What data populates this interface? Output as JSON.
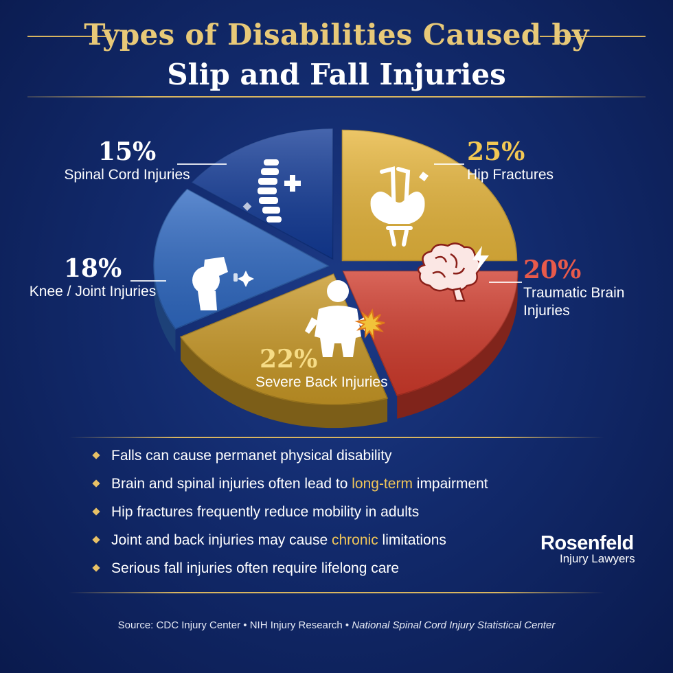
{
  "title": {
    "line1": "Types of Disabilities Caused by",
    "line2": "Slip and Fall Injuries"
  },
  "chart_data": {
    "type": "pie",
    "categories": [
      "Spinal Cord Injuries",
      "Hip Fractures",
      "Traumatic Brain Injuries",
      "Severe Back Injuries",
      "Knee / Joint Injuries"
    ],
    "values": [
      15,
      25,
      20,
      22,
      18
    ],
    "labels": {
      "spinal": {
        "pct": "15%",
        "name": "Spinal Cord Injuries"
      },
      "hip": {
        "pct": "25%",
        "name": "Hip Fractures"
      },
      "brain": {
        "pct": "20%",
        "name_line1": "Traumatic Brain",
        "name_line2": "Injuries"
      },
      "back": {
        "pct": "22%",
        "name": "Severe Back Injuries"
      },
      "knee": {
        "pct": "18%",
        "name": "Knee / Joint Injuries"
      }
    },
    "colors": {
      "spinal": "#123a96",
      "hip": "#e7b63c",
      "brain": "#cf3a2b",
      "back": "#c89826",
      "knee": "#2f69c2"
    },
    "icons": {
      "spinal": "spine-icon",
      "hip": "crutch-pelvis-icon",
      "brain": "brain-icon",
      "back": "back-pain-icon",
      "knee": "knee-joint-icon"
    }
  },
  "bullets": [
    {
      "text": "Falls can cause permanet physical disability"
    },
    {
      "pre": "Brain and spinal injuries often lead to ",
      "hl": "long-term",
      "post": " impairment"
    },
    {
      "text": "Hip fractures frequently reduce mobility in adults"
    },
    {
      "pre": "Joint and back injuries may cause ",
      "hl": "chronic",
      "post": " limitations"
    },
    {
      "text": "Serious fall injuries often require lifelong care"
    }
  ],
  "logo": {
    "name": "Rosenfeld",
    "sub": "Injury Lawyers"
  },
  "source": {
    "label": "Source:",
    "s1": "CDC Injury Center",
    "s2": "NIH Injury Research",
    "s3": "National Spinal Cord Injury Statistical Center",
    "sep": "•"
  },
  "accent_color": "#e8c978"
}
